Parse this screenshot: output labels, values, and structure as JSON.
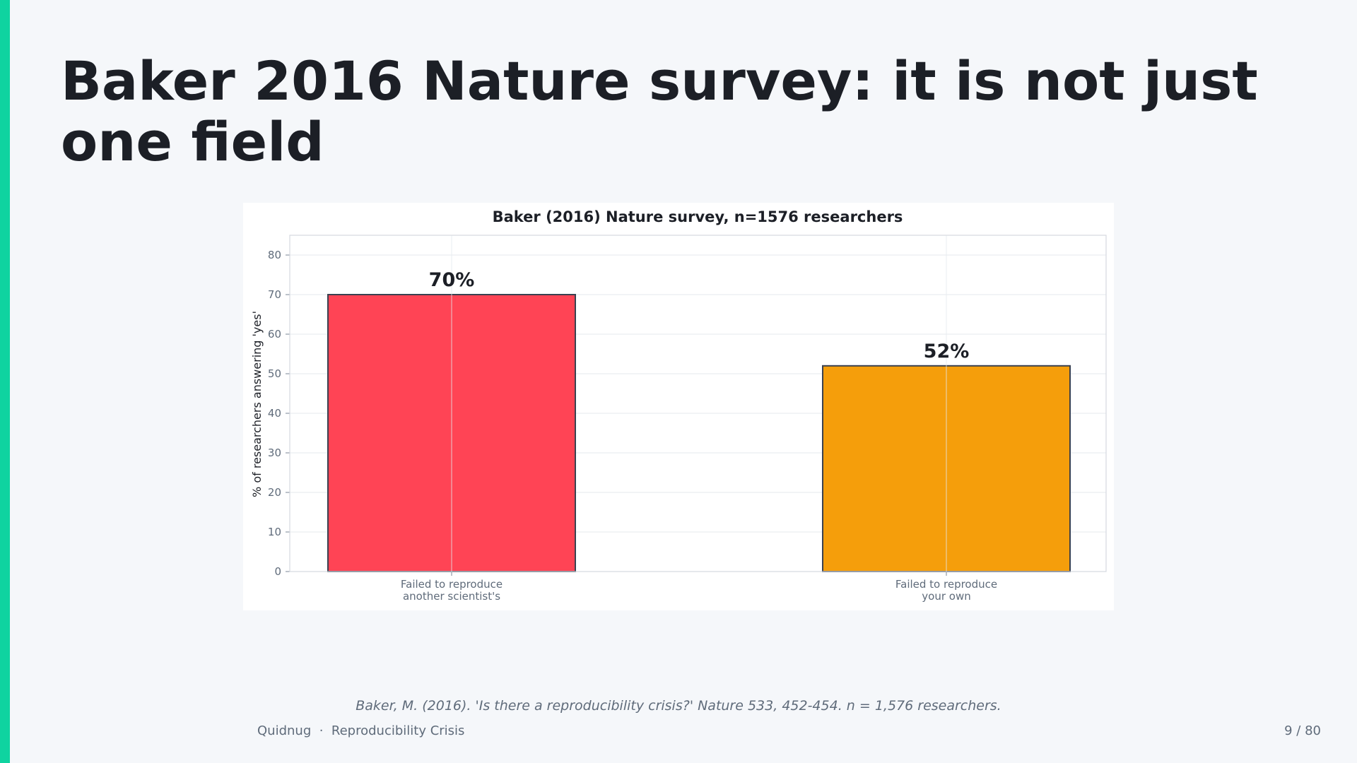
{
  "slide": {
    "title": "Baker 2016 Nature survey: it is not just one field",
    "accent_color": "#0fd3a0",
    "citation": "Baker, M. (2016). 'Is there a reproducibility crisis?' Nature 533, 452-454. n = 1,576 researchers.",
    "footer": {
      "brand": "Quidnug",
      "separator": "·",
      "deck": "Reproducibility Crisis",
      "page": "9 / 80"
    }
  },
  "chart_data": {
    "type": "bar",
    "title": "Baker (2016) Nature survey, n=1576 researchers",
    "xlabel": "",
    "ylabel": "% of researchers answering 'yes'",
    "categories": [
      [
        "Failed to reproduce",
        "another scientist's"
      ],
      [
        "Failed to reproduce",
        "your own"
      ]
    ],
    "values": [
      70,
      52
    ],
    "value_labels": [
      "70%",
      "52%"
    ],
    "colors": [
      "#ff4455",
      "#f59e0b"
    ],
    "ylim": [
      0,
      85
    ],
    "yticks": [
      0,
      10,
      20,
      30,
      40,
      50,
      60,
      70,
      80
    ],
    "grid": true,
    "legend": "none"
  }
}
